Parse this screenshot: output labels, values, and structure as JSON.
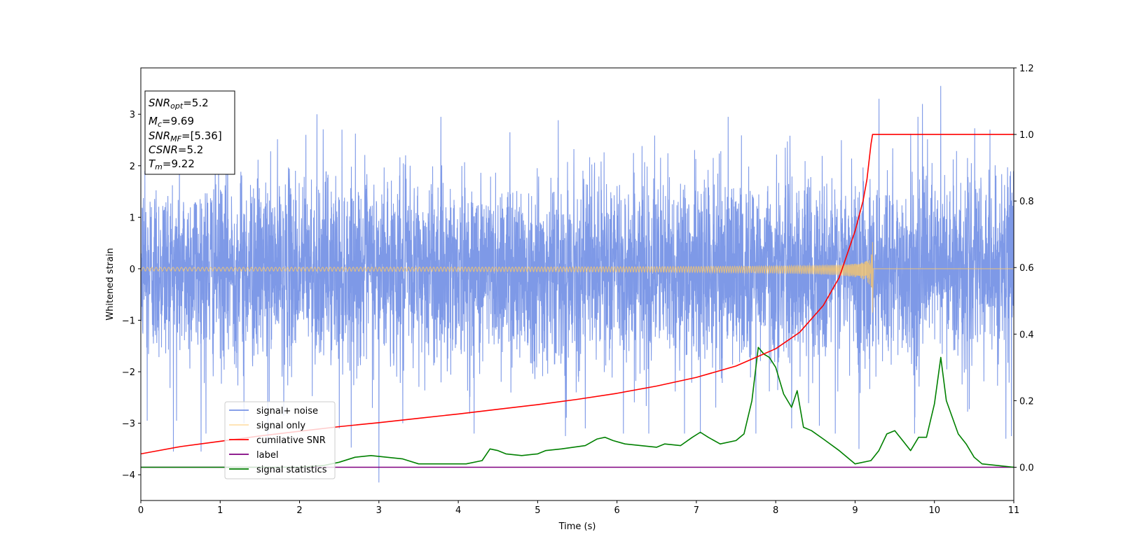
{
  "chart_data": {
    "type": "line",
    "xlabel": "Time (s)",
    "ylabel": "Whitened strain",
    "xlim": [
      0,
      11
    ],
    "ylim_left": [
      -4.5,
      3.9
    ],
    "ylim_right": [
      -0.1,
      1.2
    ],
    "x_ticks": [
      "0",
      "1",
      "2",
      "3",
      "4",
      "5",
      "6",
      "7",
      "8",
      "9",
      "10",
      "11"
    ],
    "y_left_ticks": [
      "3",
      "2",
      "1",
      "0",
      "−1",
      "−2",
      "−3",
      "−4"
    ],
    "y_right_ticks": [
      "1.2",
      "1.0",
      "0.8",
      "0.6",
      "0.4",
      "0.2",
      "0.0"
    ],
    "grid": false,
    "legend_location": "lower-left",
    "info_box": {
      "snr_opt_value": "=5.2",
      "mc_value": "=9.69",
      "snr_mf_value": "=[5.36]",
      "csnr_label": "CSNR",
      "csnr_value": "=5.2",
      "tm_value": "=9.22"
    },
    "series": [
      {
        "name": "signal+ noise",
        "axis": "left",
        "color": "#7793e6",
        "description_stats": {
          "sigma": 0.9,
          "max": 3.55,
          "min": -4.15
        },
        "spikes": [
          [
            0.05,
            1.9
          ],
          [
            0.08,
            -2.95
          ],
          [
            0.45,
            -2.95
          ],
          [
            0.82,
            -3.2
          ],
          [
            1.3,
            -3.0
          ],
          [
            1.6,
            -3.4
          ],
          [
            1.8,
            -2.85
          ],
          [
            2.08,
            2.6
          ],
          [
            2.22,
            3.0
          ],
          [
            2.5,
            -3.1
          ],
          [
            3.0,
            -4.15
          ],
          [
            3.3,
            -3.0
          ],
          [
            4.2,
            -3.2
          ],
          [
            4.65,
            2.65
          ],
          [
            5.35,
            -3.25
          ],
          [
            5.6,
            -3.1
          ],
          [
            6.08,
            -3.2
          ],
          [
            6.4,
            -3.2
          ],
          [
            6.85,
            -3.2
          ],
          [
            7.05,
            -3.2
          ],
          [
            7.4,
            2.95
          ],
          [
            7.75,
            -3.2
          ],
          [
            8.2,
            -3.1
          ],
          [
            8.55,
            -3.05
          ],
          [
            8.75,
            -3.2
          ],
          [
            9.05,
            -3.5
          ],
          [
            9.3,
            3.3
          ],
          [
            9.75,
            -3.2
          ],
          [
            9.85,
            3.2
          ],
          [
            10.08,
            3.55
          ],
          [
            10.7,
            2.7
          ],
          [
            10.9,
            -3.3
          ],
          [
            10.97,
            -3.25
          ]
        ]
      },
      {
        "name": "signal only",
        "axis": "left",
        "color": "#ffc966",
        "chirp": {
          "t_merge": 9.22,
          "peak_amp_pos": 0.52,
          "peak_amp_neg": -0.85
        }
      },
      {
        "name": "cumilative SNR",
        "axis": "right",
        "color": "#ff0000",
        "x": [
          0,
          0.5,
          1,
          1.5,
          2,
          2.5,
          3,
          3.5,
          4,
          4.5,
          5,
          5.5,
          6,
          6.5,
          7,
          7.5,
          8,
          8.3,
          8.6,
          8.8,
          9.0,
          9.1,
          9.15,
          9.2,
          9.22,
          11
        ],
        "values": [
          0.04,
          0.062,
          0.078,
          0.094,
          0.108,
          0.122,
          0.134,
          0.147,
          0.16,
          0.174,
          0.188,
          0.204,
          0.222,
          0.244,
          0.27,
          0.304,
          0.356,
          0.405,
          0.486,
          0.57,
          0.71,
          0.8,
          0.865,
          0.97,
          1.0,
          1.0
        ]
      },
      {
        "name": "label",
        "axis": "right",
        "color": "#800080",
        "x": [
          0,
          11
        ],
        "values": [
          0.0,
          0.0
        ]
      },
      {
        "name": "signal statistics",
        "axis": "right",
        "color": "#008000",
        "x": [
          0,
          0.5,
          1.0,
          1.5,
          2.0,
          2.3,
          2.5,
          2.7,
          2.9,
          3.1,
          3.3,
          3.5,
          3.8,
          4.1,
          4.3,
          4.4,
          4.5,
          4.6,
          4.8,
          5.0,
          5.1,
          5.3,
          5.45,
          5.6,
          5.75,
          5.85,
          5.95,
          6.1,
          6.3,
          6.5,
          6.6,
          6.8,
          6.95,
          7.05,
          7.15,
          7.3,
          7.5,
          7.6,
          7.7,
          7.78,
          7.85,
          7.92,
          8.0,
          8.1,
          8.2,
          8.27,
          8.35,
          8.45,
          8.6,
          8.8,
          9.0,
          9.2,
          9.3,
          9.4,
          9.5,
          9.6,
          9.7,
          9.8,
          9.9,
          10.0,
          10.08,
          10.15,
          10.3,
          10.4,
          10.5,
          10.6,
          10.8,
          11.0
        ],
        "values": [
          0.0,
          0.0,
          0.0,
          0.0,
          0.0,
          0.005,
          0.015,
          0.03,
          0.035,
          0.03,
          0.025,
          0.01,
          0.01,
          0.01,
          0.02,
          0.055,
          0.05,
          0.04,
          0.035,
          0.04,
          0.05,
          0.055,
          0.06,
          0.065,
          0.085,
          0.09,
          0.08,
          0.07,
          0.065,
          0.06,
          0.07,
          0.065,
          0.09,
          0.105,
          0.09,
          0.07,
          0.08,
          0.1,
          0.2,
          0.36,
          0.34,
          0.33,
          0.3,
          0.22,
          0.18,
          0.23,
          0.12,
          0.11,
          0.085,
          0.05,
          0.01,
          0.02,
          0.05,
          0.1,
          0.11,
          0.08,
          0.05,
          0.09,
          0.09,
          0.19,
          0.33,
          0.2,
          0.1,
          0.07,
          0.03,
          0.01,
          0.005,
          0.0
        ]
      }
    ]
  }
}
